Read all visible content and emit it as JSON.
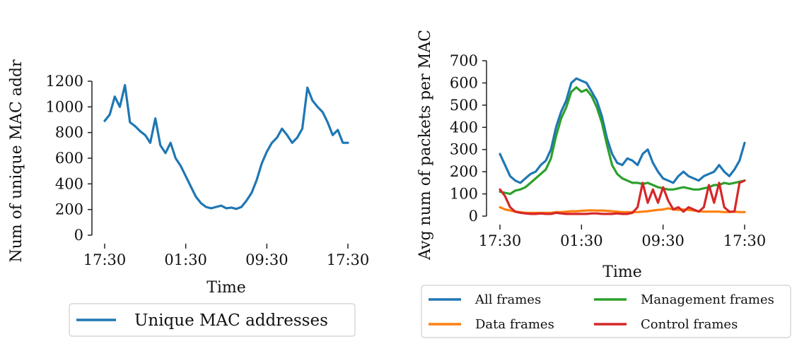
{
  "chart_data": [
    {
      "type": "line",
      "title": "",
      "xlabel": "Time",
      "ylabel": "Num of unique MAC addr",
      "x_ticks": [
        "17:30",
        "01:30",
        "09:30",
        "17:30"
      ],
      "y_ticks": [
        0,
        200,
        400,
        600,
        800,
        1000,
        1200
      ],
      "x_range_hours": [
        0,
        24
      ],
      "ylim": [
        0,
        1200
      ],
      "grid": false,
      "legend_position": "bottom",
      "x_hours": [
        0,
        0.5,
        1,
        1.5,
        2,
        2.5,
        3,
        3.5,
        4,
        4.5,
        5,
        5.5,
        6,
        6.5,
        7,
        7.5,
        8,
        8.5,
        9,
        9.5,
        10,
        10.5,
        11,
        11.5,
        12,
        12.5,
        13,
        13.5,
        14,
        14.5,
        15,
        15.5,
        16,
        16.5,
        17,
        17.5,
        18,
        18.5,
        19,
        19.5,
        20,
        20.5,
        21,
        21.5,
        22,
        22.5,
        23,
        23.5,
        24
      ],
      "series": [
        {
          "name": "Unique MAC addresses",
          "color": "#1f77b4",
          "values": [
            890,
            940,
            1080,
            1000,
            1170,
            880,
            850,
            810,
            780,
            720,
            910,
            700,
            640,
            720,
            600,
            540,
            460,
            380,
            300,
            250,
            220,
            210,
            220,
            230,
            210,
            215,
            205,
            220,
            270,
            330,
            430,
            560,
            650,
            720,
            760,
            830,
            780,
            720,
            760,
            830,
            1150,
            1050,
            1000,
            960,
            880,
            780,
            820,
            720,
            720
          ]
        }
      ]
    },
    {
      "type": "line",
      "title": "",
      "xlabel": "Time",
      "ylabel": "Avg num of packets per MAC",
      "x_ticks": [
        "17:30",
        "01:30",
        "09:30",
        "17:30"
      ],
      "y_ticks": [
        0,
        100,
        200,
        300,
        400,
        500,
        600,
        700
      ],
      "x_range_hours": [
        0,
        24
      ],
      "ylim": [
        0,
        700
      ],
      "grid": false,
      "legend_position": "bottom",
      "x_hours": [
        0,
        0.5,
        1,
        1.5,
        2,
        2.5,
        3,
        3.5,
        4,
        4.5,
        5,
        5.5,
        6,
        6.5,
        7,
        7.5,
        8,
        8.5,
        9,
        9.5,
        10,
        10.5,
        11,
        11.5,
        12,
        12.5,
        13,
        13.5,
        14,
        14.5,
        15,
        15.5,
        16,
        16.5,
        17,
        17.5,
        18,
        18.5,
        19,
        19.5,
        20,
        20.5,
        21,
        21.5,
        22,
        22.5,
        23,
        23.5,
        24
      ],
      "series": [
        {
          "name": "All frames",
          "color": "#1f77b4",
          "values": [
            280,
            230,
            180,
            160,
            150,
            170,
            190,
            200,
            230,
            250,
            300,
            400,
            470,
            520,
            600,
            620,
            610,
            600,
            560,
            520,
            450,
            350,
            280,
            240,
            230,
            260,
            250,
            230,
            280,
            300,
            240,
            200,
            170,
            160,
            150,
            180,
            200,
            180,
            170,
            160,
            180,
            190,
            200,
            230,
            200,
            180,
            210,
            250,
            330
          ]
        },
        {
          "name": "Data frames",
          "color": "#ff7f0e",
          "values": [
            40,
            30,
            25,
            20,
            18,
            15,
            15,
            15,
            15,
            15,
            15,
            18,
            18,
            20,
            22,
            22,
            24,
            25,
            26,
            25,
            25,
            24,
            22,
            20,
            18,
            18,
            18,
            18,
            20,
            22,
            25,
            28,
            30,
            35,
            30,
            28,
            30,
            28,
            25,
            22,
            20,
            20,
            20,
            20,
            18,
            18,
            20,
            18,
            18
          ]
        },
        {
          "name": "Management frames",
          "color": "#2ca02c",
          "values": [
            110,
            105,
            100,
            115,
            120,
            130,
            150,
            170,
            190,
            210,
            260,
            360,
            440,
            490,
            560,
            580,
            560,
            570,
            540,
            490,
            420,
            320,
            230,
            190,
            170,
            160,
            150,
            150,
            145,
            150,
            140,
            130,
            125,
            120,
            120,
            125,
            130,
            125,
            120,
            120,
            125,
            130,
            140,
            140,
            150,
            145,
            150,
            155,
            160
          ]
        },
        {
          "name": "Control frames",
          "color": "#d62728",
          "values": [
            120,
            90,
            40,
            20,
            15,
            12,
            10,
            10,
            12,
            10,
            10,
            15,
            12,
            10,
            10,
            10,
            10,
            10,
            12,
            12,
            10,
            10,
            10,
            12,
            10,
            10,
            15,
            40,
            150,
            60,
            120,
            60,
            130,
            70,
            30,
            40,
            20,
            40,
            30,
            20,
            40,
            140,
            60,
            150,
            40,
            20,
            20,
            150,
            160
          ]
        }
      ]
    }
  ]
}
